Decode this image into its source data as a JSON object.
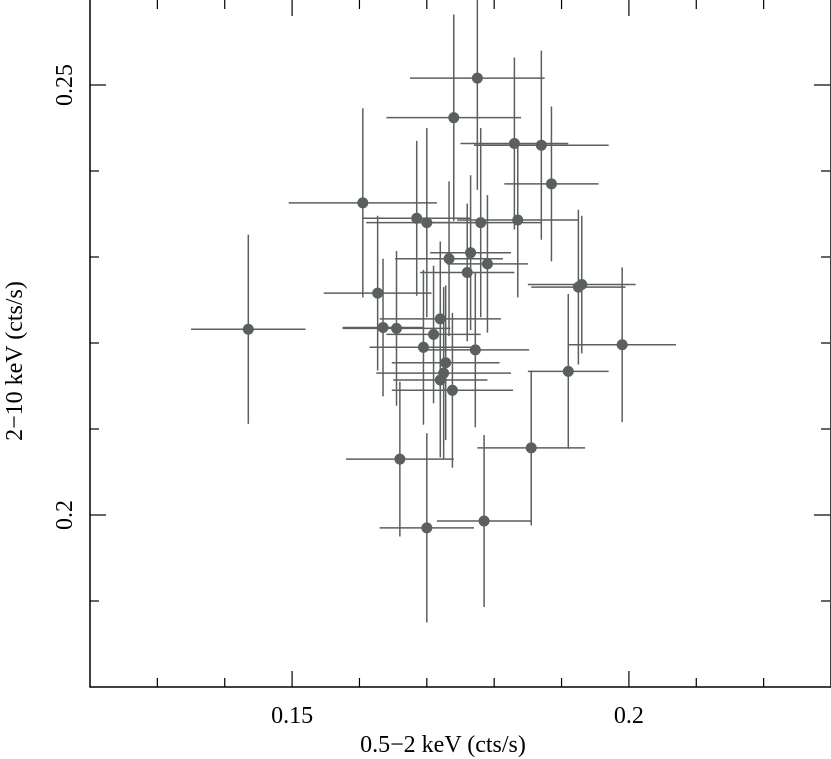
{
  "chart_data": {
    "type": "scatter",
    "title": "",
    "xlabel": "0.5−2 keV (cts/s)",
    "ylabel": "2−10 keV (cts/s)",
    "xlim": [
      0.12,
      0.23
    ],
    "ylim": [
      0.18,
      0.26
    ],
    "x_major_ticks": [
      0.15,
      0.2
    ],
    "x_major_tick_labels": [
      "0.15",
      "0.2"
    ],
    "x_minor_ticks": [
      0.13,
      0.14,
      0.16,
      0.17,
      0.18,
      0.19,
      0.21,
      0.22
    ],
    "y_major_ticks": [
      0.2,
      0.25
    ],
    "y_major_tick_labels": [
      "0.2",
      "0.25"
    ],
    "y_minor_ticks": [
      0.19,
      0.21,
      0.22,
      0.23,
      0.24,
      0.26
    ],
    "grid": false,
    "legend": "none",
    "colors": {
      "marker": "#5b5f5f",
      "errorbar": "#5b5f5f",
      "axes": "#000000"
    },
    "points": [
      {
        "x": 0.1435,
        "y": 0.2216,
        "xerr": 0.0085,
        "yerr": 0.011
      },
      {
        "x": 0.1605,
        "y": 0.2363,
        "xerr": 0.011,
        "yerr": 0.011
      },
      {
        "x": 0.1627,
        "y": 0.2258,
        "xerr": 0.008,
        "yerr": 0.009
      },
      {
        "x": 0.1635,
        "y": 0.2218,
        "xerr": 0.006,
        "yerr": 0.008
      },
      {
        "x": 0.1655,
        "y": 0.2217,
        "xerr": 0.008,
        "yerr": 0.009
      },
      {
        "x": 0.166,
        "y": 0.2065,
        "xerr": 0.008,
        "yerr": 0.009
      },
      {
        "x": 0.1685,
        "y": 0.2345,
        "xerr": 0.008,
        "yerr": 0.009
      },
      {
        "x": 0.1695,
        "y": 0.2195,
        "xerr": 0.008,
        "yerr": 0.009
      },
      {
        "x": 0.17,
        "y": 0.234,
        "xerr": 0.009,
        "yerr": 0.011
      },
      {
        "x": 0.17,
        "y": 0.1985,
        "xerr": 0.007,
        "yerr": 0.011
      },
      {
        "x": 0.171,
        "y": 0.221,
        "xerr": 0.007,
        "yerr": 0.008
      },
      {
        "x": 0.172,
        "y": 0.2228,
        "xerr": 0.009,
        "yerr": 0.009
      },
      {
        "x": 0.172,
        "y": 0.2157,
        "xerr": 0.007,
        "yerr": 0.009
      },
      {
        "x": 0.1725,
        "y": 0.2165,
        "xerr": 0.01,
        "yerr": 0.01
      },
      {
        "x": 0.1728,
        "y": 0.2177,
        "xerr": 0.008,
        "yerr": 0.009
      },
      {
        "x": 0.1733,
        "y": 0.2298,
        "xerr": 0.008,
        "yerr": 0.009
      },
      {
        "x": 0.1738,
        "y": 0.2145,
        "xerr": 0.009,
        "yerr": 0.009
      },
      {
        "x": 0.174,
        "y": 0.2462,
        "xerr": 0.01,
        "yerr": 0.012
      },
      {
        "x": 0.176,
        "y": 0.2282,
        "xerr": 0.007,
        "yerr": 0.008
      },
      {
        "x": 0.1765,
        "y": 0.2305,
        "xerr": 0.006,
        "yerr": 0.009
      },
      {
        "x": 0.1772,
        "y": 0.2192,
        "xerr": 0.008,
        "yerr": 0.009
      },
      {
        "x": 0.1775,
        "y": 0.2508,
        "xerr": 0.01,
        "yerr": 0.013
      },
      {
        "x": 0.178,
        "y": 0.234,
        "xerr": 0.009,
        "yerr": 0.011
      },
      {
        "x": 0.1785,
        "y": 0.1993,
        "xerr": 0.007,
        "yerr": 0.01
      },
      {
        "x": 0.179,
        "y": 0.2292,
        "xerr": 0.006,
        "yerr": 0.008
      },
      {
        "x": 0.183,
        "y": 0.2432,
        "xerr": 0.008,
        "yerr": 0.01
      },
      {
        "x": 0.1835,
        "y": 0.2343,
        "xerr": 0.009,
        "yerr": 0.009
      },
      {
        "x": 0.1855,
        "y": 0.2078,
        "xerr": 0.008,
        "yerr": 0.009
      },
      {
        "x": 0.187,
        "y": 0.243,
        "xerr": 0.01,
        "yerr": 0.011
      },
      {
        "x": 0.1885,
        "y": 0.2385,
        "xerr": 0.007,
        "yerr": 0.009
      },
      {
        "x": 0.191,
        "y": 0.2167,
        "xerr": 0.006,
        "yerr": 0.009
      },
      {
        "x": 0.1925,
        "y": 0.2265,
        "xerr": 0.007,
        "yerr": 0.009
      },
      {
        "x": 0.193,
        "y": 0.2268,
        "xerr": 0.008,
        "yerr": 0.008
      },
      {
        "x": 0.199,
        "y": 0.2198,
        "xerr": 0.008,
        "yerr": 0.009
      }
    ]
  }
}
